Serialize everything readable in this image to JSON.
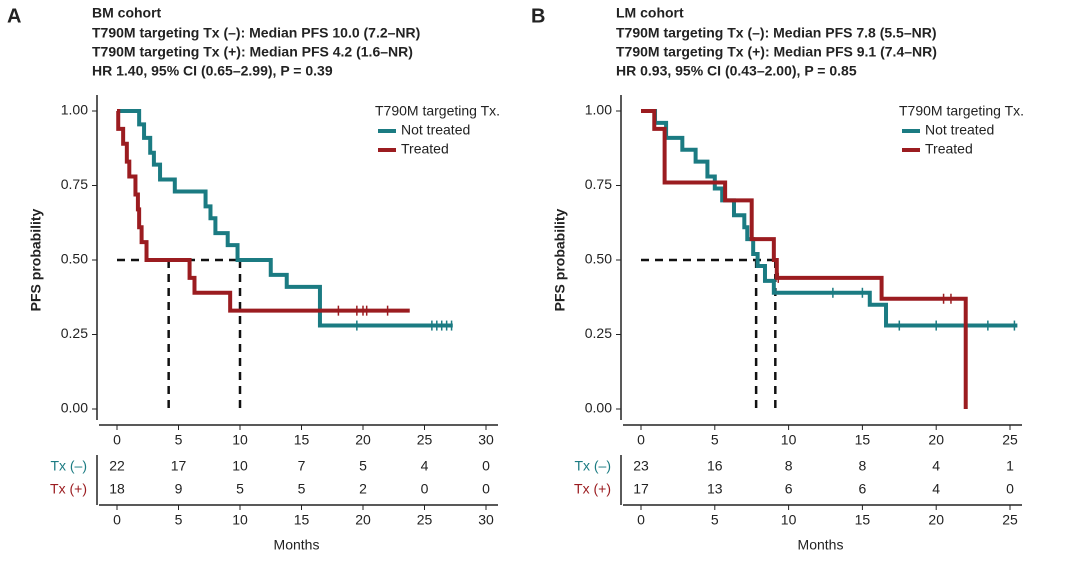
{
  "chart_data": [
    {
      "type": "step",
      "panel": "A",
      "title": "BM cohort",
      "subtitle_lines": [
        "T790M targeting Tx (–): Median PFS 10.0 (7.2–NR)",
        "T790M targeting Tx (+): Median PFS 4.2 (1.6–NR)",
        "HR 1.40, 95% CI (0.65–2.99), P = 0.39"
      ],
      "xlabel": "Months",
      "ylabel": "PFS probability",
      "legend_title": "T790M targeting Tx.",
      "xlim": [
        0,
        30
      ],
      "xticks": [
        0,
        5,
        10,
        15,
        20,
        25,
        30
      ],
      "ylim": [
        0,
        1
      ],
      "yticks": [
        {
          "value": 0,
          "label": "0.00"
        },
        {
          "value": 0.25,
          "label": "0.25"
        },
        {
          "value": 0.5,
          "label": "0.50"
        },
        {
          "value": 0.75,
          "label": "0.75"
        },
        {
          "value": 1,
          "label": "1.00"
        }
      ],
      "median_y": 0.5,
      "median_x": [
        4.2,
        10.0
      ],
      "series": [
        {
          "name": "Not treated",
          "row_label": "Tx (–)",
          "color": "#1b7b82",
          "x": [
            0,
            1.8,
            2.2,
            2.7,
            3.0,
            3.5,
            4.7,
            7.2,
            7.6,
            8.0,
            9.0,
            9.8,
            12.5,
            13.8,
            16.5,
            27.3
          ],
          "values": [
            1,
            0.955,
            0.91,
            0.86,
            0.82,
            0.77,
            0.73,
            0.68,
            0.64,
            0.59,
            0.55,
            0.5,
            0.45,
            0.41,
            0.28,
            0.28
          ],
          "censor_x": [
            19.5,
            25.6,
            26.0,
            26.4,
            26.8,
            27.2
          ],
          "at_risk": [
            22,
            17,
            10,
            7,
            5,
            4,
            0
          ]
        },
        {
          "name": "Treated",
          "row_label": "Tx (+)",
          "color": "#9b1c20",
          "x": [
            0,
            0.1,
            0.5,
            0.8,
            1.0,
            1.5,
            1.7,
            1.8,
            2.0,
            2.4,
            5.9,
            6.3,
            9.2,
            23.8
          ],
          "values": [
            1,
            0.94,
            0.89,
            0.83,
            0.78,
            0.72,
            0.67,
            0.61,
            0.56,
            0.5,
            0.44,
            0.39,
            0.33,
            0.33
          ],
          "censor_x": [
            18.0,
            19.5,
            20.0,
            20.3,
            22.0
          ],
          "at_risk": [
            18,
            9,
            5,
            5,
            2,
            0,
            0
          ]
        }
      ]
    },
    {
      "type": "step",
      "panel": "B",
      "title": "LM cohort",
      "subtitle_lines": [
        "T790M targeting Tx (–): Median PFS 7.8 (5.5–NR)",
        "T790M targeting Tx (+): Median PFS 9.1 (7.4–NR)",
        "HR 0.93, 95% CI (0.43–2.00), P = 0.85"
      ],
      "xlabel": "Months",
      "ylabel": "PFS probability",
      "legend_title": "T790M targeting Tx.",
      "xlim": [
        0,
        25
      ],
      "xticks": [
        0,
        5,
        10,
        15,
        20,
        25
      ],
      "ylim": [
        0,
        1
      ],
      "yticks": [
        {
          "value": 0,
          "label": "0.00"
        },
        {
          "value": 0.25,
          "label": "0.25"
        },
        {
          "value": 0.5,
          "label": "0.50"
        },
        {
          "value": 0.75,
          "label": "0.75"
        },
        {
          "value": 1,
          "label": "1.00"
        }
      ],
      "median_y": 0.5,
      "median_x": [
        7.8,
        9.1
      ],
      "series": [
        {
          "name": "Not treated",
          "row_label": "Tx (–)",
          "color": "#1b7b82",
          "x": [
            0,
            0.95,
            1.7,
            2.8,
            3.7,
            4.5,
            5.0,
            5.5,
            6.3,
            7.0,
            7.2,
            7.6,
            7.9,
            8.4,
            9.0,
            15.5,
            16.6,
            25.5
          ],
          "values": [
            1,
            0.96,
            0.91,
            0.87,
            0.83,
            0.78,
            0.74,
            0.7,
            0.65,
            0.61,
            0.57,
            0.52,
            0.48,
            0.43,
            0.39,
            0.35,
            0.28,
            0.28
          ],
          "censor_x": [
            13.0,
            15.0,
            17.5,
            20.0,
            23.5,
            25.3
          ],
          "at_risk": [
            23,
            16,
            8,
            8,
            4,
            1
          ]
        },
        {
          "name": "Treated",
          "row_label": "Tx (+)",
          "color": "#9b1c20",
          "x": [
            0,
            0.9,
            1.6,
            5.7,
            7.5,
            9.0,
            9.2,
            16.3,
            22.0
          ],
          "values": [
            1,
            0.94,
            0.76,
            0.7,
            0.57,
            0.5,
            0.44,
            0.37,
            0
          ],
          "censor_x": [
            9.3,
            20.5,
            21.0
          ],
          "at_risk": [
            17,
            13,
            6,
            6,
            4,
            0
          ]
        }
      ]
    }
  ]
}
